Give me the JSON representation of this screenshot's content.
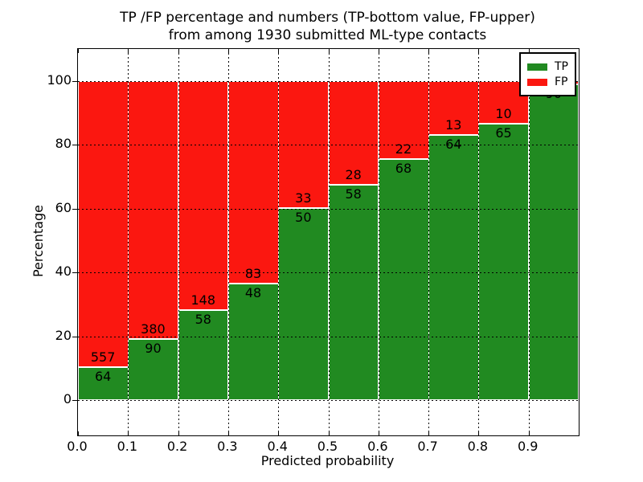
{
  "figure": {
    "title_line1": "TP /FP percentage and numbers (TP-bottom value, FP-upper)",
    "title_line2": "from among 1930 submitted ML-type contacts",
    "xlabel": "Predicted probability",
    "ylabel": "Percentage"
  },
  "legend": {
    "position": "upper right",
    "items": [
      {
        "label": "TP",
        "color": "#218a21"
      },
      {
        "label": "FP",
        "color": "#fb1710"
      }
    ]
  },
  "colors": {
    "tp_green": "#218a21",
    "fp_red": "#fb1710",
    "grid": "#000000",
    "background": "#ffffff",
    "bar_edge": "#ffffff"
  },
  "chart_data": {
    "type": "bar",
    "stacked": true,
    "title": "TP /FP percentage and numbers (TP-bottom value, FP-upper) from among 1930 submitted ML-type contacts",
    "xlabel": "Predicted probability",
    "ylabel": "Percentage",
    "xlim": [
      0,
      1
    ],
    "ylim": [
      -11,
      110
    ],
    "x_tick_labels": [
      "0.0",
      "0.1",
      "0.2",
      "0.3",
      "0.4",
      "0.5",
      "0.6",
      "0.7",
      "0.8",
      "0.9"
    ],
    "y_ticks": [
      0,
      20,
      40,
      60,
      80,
      100
    ],
    "grid": "dotted",
    "legend_position": "upper right",
    "bin_width": 0.1,
    "bar_total_pct": 100,
    "bins": [
      {
        "x_start": 0.0,
        "tp_count": 64,
        "fp_count": 557,
        "tp_pct": 10.3
      },
      {
        "x_start": 0.1,
        "tp_count": 90,
        "fp_count": 380,
        "tp_pct": 19.1
      },
      {
        "x_start": 0.2,
        "tp_count": 58,
        "fp_count": 148,
        "tp_pct": 28.2
      },
      {
        "x_start": 0.3,
        "tp_count": 48,
        "fp_count": 83,
        "tp_pct": 36.6
      },
      {
        "x_start": 0.4,
        "tp_count": 50,
        "fp_count": 33,
        "tp_pct": 60.2
      },
      {
        "x_start": 0.5,
        "tp_count": 58,
        "fp_count": 28,
        "tp_pct": 67.4
      },
      {
        "x_start": 0.6,
        "tp_count": 68,
        "fp_count": 22,
        "tp_pct": 75.6
      },
      {
        "x_start": 0.7,
        "tp_count": 64,
        "fp_count": 13,
        "tp_pct": 83.1
      },
      {
        "x_start": 0.8,
        "tp_count": 65,
        "fp_count": 10,
        "tp_pct": 86.7
      },
      {
        "x_start": 0.9,
        "tp_count": 90,
        "fp_count": null,
        "tp_pct": 98.9
      }
    ],
    "series": [
      {
        "name": "TP",
        "color": "#218a21"
      },
      {
        "name": "FP",
        "color": "#fb1710"
      }
    ]
  }
}
